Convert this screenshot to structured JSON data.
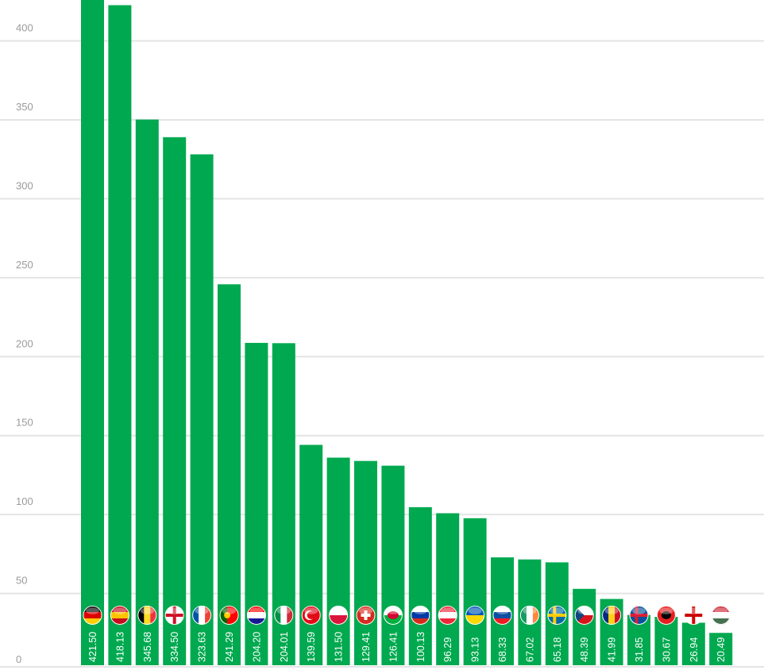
{
  "chart_data": {
    "type": "bar",
    "ylim": [
      0,
      420
    ],
    "yticks": [
      0,
      50,
      100,
      150,
      200,
      250,
      300,
      350,
      400
    ],
    "grid": true,
    "bar_color": "#00a94f",
    "grid_color": "#e4e4e4",
    "tick_color": "#9a9a9a",
    "bars": [
      {
        "label": "421.50",
        "value": 421.5,
        "flag": "germany-flag-icon",
        "colors": [
          "#000000",
          "#dd0000",
          "#ffce00"
        ],
        "pattern": "h"
      },
      {
        "label": "418.13",
        "value": 418.13,
        "flag": "spain-flag-icon",
        "colors": [
          "#c60b1e",
          "#ffc400",
          "#c60b1e"
        ],
        "pattern": "h"
      },
      {
        "label": "345.68",
        "value": 345.68,
        "flag": "belgium-flag-icon",
        "colors": [
          "#000000",
          "#fdda24",
          "#ef3340"
        ],
        "pattern": "v"
      },
      {
        "label": "334.50",
        "value": 334.5,
        "flag": "england-flag-icon",
        "colors": [
          "#ffffff",
          "#ce1124"
        ],
        "pattern": "cross"
      },
      {
        "label": "323.63",
        "value": 323.63,
        "flag": "france-flag-icon",
        "colors": [
          "#0055a4",
          "#ffffff",
          "#ef4135"
        ],
        "pattern": "v"
      },
      {
        "label": "241.29",
        "value": 241.29,
        "flag": "portugal-flag-icon",
        "colors": [
          "#006600",
          "#ff0000",
          "#ffcc00"
        ],
        "pattern": "pt"
      },
      {
        "label": "204.20",
        "value": 204.2,
        "flag": "croatia-flag-icon",
        "colors": [
          "#ff0000",
          "#ffffff",
          "#171796"
        ],
        "pattern": "h"
      },
      {
        "label": "204.01",
        "value": 204.01,
        "flag": "italy-flag-icon",
        "colors": [
          "#009246",
          "#ffffff",
          "#ce2b37"
        ],
        "pattern": "v"
      },
      {
        "label": "139.59",
        "value": 139.59,
        "flag": "turkey-flag-icon",
        "colors": [
          "#e30a17",
          "#ffffff"
        ],
        "pattern": "crescent"
      },
      {
        "label": "131.50",
        "value": 131.5,
        "flag": "poland-flag-icon",
        "colors": [
          "#ffffff",
          "#dc143c"
        ],
        "pattern": "h"
      },
      {
        "label": "129.41",
        "value": 129.41,
        "flag": "switzerland-flag-icon",
        "colors": [
          "#d52b1e",
          "#ffffff"
        ],
        "pattern": "plus"
      },
      {
        "label": "126.41",
        "value": 126.41,
        "flag": "wales-flag-icon",
        "colors": [
          "#ffffff",
          "#00b140",
          "#d30731"
        ],
        "pattern": "wales"
      },
      {
        "label": "100.13",
        "value": 100.13,
        "flag": "russia-flag-icon",
        "colors": [
          "#ffffff",
          "#0039a6",
          "#d52b1e"
        ],
        "pattern": "h"
      },
      {
        "label": "96.29",
        "value": 96.29,
        "flag": "austria-flag-icon",
        "colors": [
          "#ed2939",
          "#ffffff",
          "#ed2939"
        ],
        "pattern": "h"
      },
      {
        "label": "93.13",
        "value": 93.13,
        "flag": "ukraine-flag-icon",
        "colors": [
          "#0057b7",
          "#ffd700"
        ],
        "pattern": "h"
      },
      {
        "label": "68.33",
        "value": 68.33,
        "flag": "slovakia-flag-icon",
        "colors": [
          "#ffffff",
          "#0b4ea2",
          "#ee1c25"
        ],
        "pattern": "h"
      },
      {
        "label": "67.02",
        "value": 67.02,
        "flag": "ireland-flag-icon",
        "colors": [
          "#169b62",
          "#ffffff",
          "#ff883e"
        ],
        "pattern": "v"
      },
      {
        "label": "65.18",
        "value": 65.18,
        "flag": "sweden-flag-icon",
        "colors": [
          "#006aa7",
          "#fecc00"
        ],
        "pattern": "nordic"
      },
      {
        "label": "48.39",
        "value": 48.39,
        "flag": "czech-flag-icon",
        "colors": [
          "#ffffff",
          "#d7141a",
          "#11457e"
        ],
        "pattern": "cz"
      },
      {
        "label": "41.99",
        "value": 41.99,
        "flag": "romania-flag-icon",
        "colors": [
          "#002b7f",
          "#fcd116",
          "#ce1126"
        ],
        "pattern": "v"
      },
      {
        "label": "31.85",
        "value": 31.85,
        "flag": "iceland-flag-icon",
        "colors": [
          "#02529c",
          "#dc1e35"
        ],
        "pattern": "nordic"
      },
      {
        "label": "30.67",
        "value": 30.67,
        "flag": "albania-flag-icon",
        "colors": [
          "#e41e20",
          "#000000"
        ],
        "pattern": "eagle"
      },
      {
        "label": "26.94",
        "value": 26.94,
        "flag": "northern-ireland-flag-icon",
        "colors": [
          "#ffffff",
          "#cc0000"
        ],
        "pattern": "cross"
      },
      {
        "label": "20.49",
        "value": 20.49,
        "flag": "hungary-flag-icon",
        "colors": [
          "#ce2939",
          "#ffffff",
          "#477050"
        ],
        "pattern": "h"
      }
    ]
  }
}
